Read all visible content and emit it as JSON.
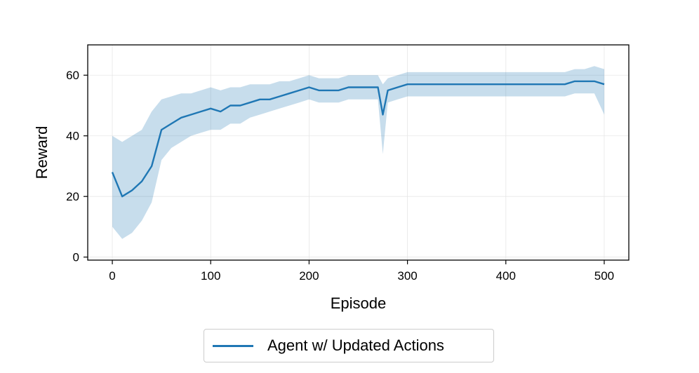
{
  "chart_data": {
    "type": "line",
    "xlabel": "Episode",
    "ylabel": "Reward",
    "xlim": [
      -25,
      525
    ],
    "ylim": [
      -1,
      70
    ],
    "xticks": [
      0,
      100,
      200,
      300,
      400,
      500
    ],
    "yticks": [
      0,
      20,
      40,
      60
    ],
    "grid": true,
    "legend_position": "below",
    "series": [
      {
        "name": "Agent w/ Updated Actions",
        "color": "#1f77b4",
        "band_color": "#1f77b4",
        "band_opacity": 0.25,
        "x": [
          0,
          10,
          20,
          30,
          40,
          50,
          60,
          70,
          80,
          90,
          100,
          110,
          120,
          130,
          140,
          150,
          160,
          170,
          180,
          190,
          200,
          210,
          220,
          230,
          240,
          250,
          260,
          270,
          275,
          280,
          290,
          300,
          310,
          320,
          330,
          340,
          350,
          360,
          370,
          380,
          390,
          400,
          410,
          420,
          430,
          440,
          450,
          460,
          470,
          480,
          490,
          500
        ],
        "mean": [
          28,
          20,
          22,
          25,
          30,
          42,
          44,
          46,
          47,
          48,
          49,
          48,
          50,
          50,
          51,
          52,
          52,
          53,
          54,
          55,
          56,
          55,
          55,
          55,
          56,
          56,
          56,
          56,
          47,
          55,
          56,
          57,
          57,
          57,
          57,
          57,
          57,
          57,
          57,
          57,
          57,
          57,
          57,
          57,
          57,
          57,
          57,
          57,
          58,
          58,
          58,
          57
        ],
        "lower": [
          10,
          6,
          8,
          12,
          18,
          32,
          36,
          38,
          40,
          41,
          42,
          42,
          44,
          44,
          46,
          47,
          48,
          49,
          50,
          51,
          52,
          51,
          51,
          51,
          52,
          52,
          52,
          52,
          34,
          51,
          52,
          53,
          53,
          53,
          53,
          53,
          53,
          53,
          53,
          53,
          53,
          53,
          53,
          53,
          53,
          53,
          53,
          53,
          54,
          54,
          54,
          47
        ],
        "upper": [
          40,
          38,
          40,
          42,
          48,
          52,
          53,
          54,
          54,
          55,
          56,
          55,
          56,
          56,
          57,
          57,
          57,
          58,
          58,
          59,
          60,
          59,
          59,
          59,
          60,
          60,
          60,
          60,
          57,
          59,
          60,
          61,
          61,
          61,
          61,
          61,
          61,
          61,
          61,
          61,
          61,
          61,
          61,
          61,
          61,
          61,
          61,
          61,
          62,
          62,
          63,
          62
        ]
      }
    ]
  }
}
